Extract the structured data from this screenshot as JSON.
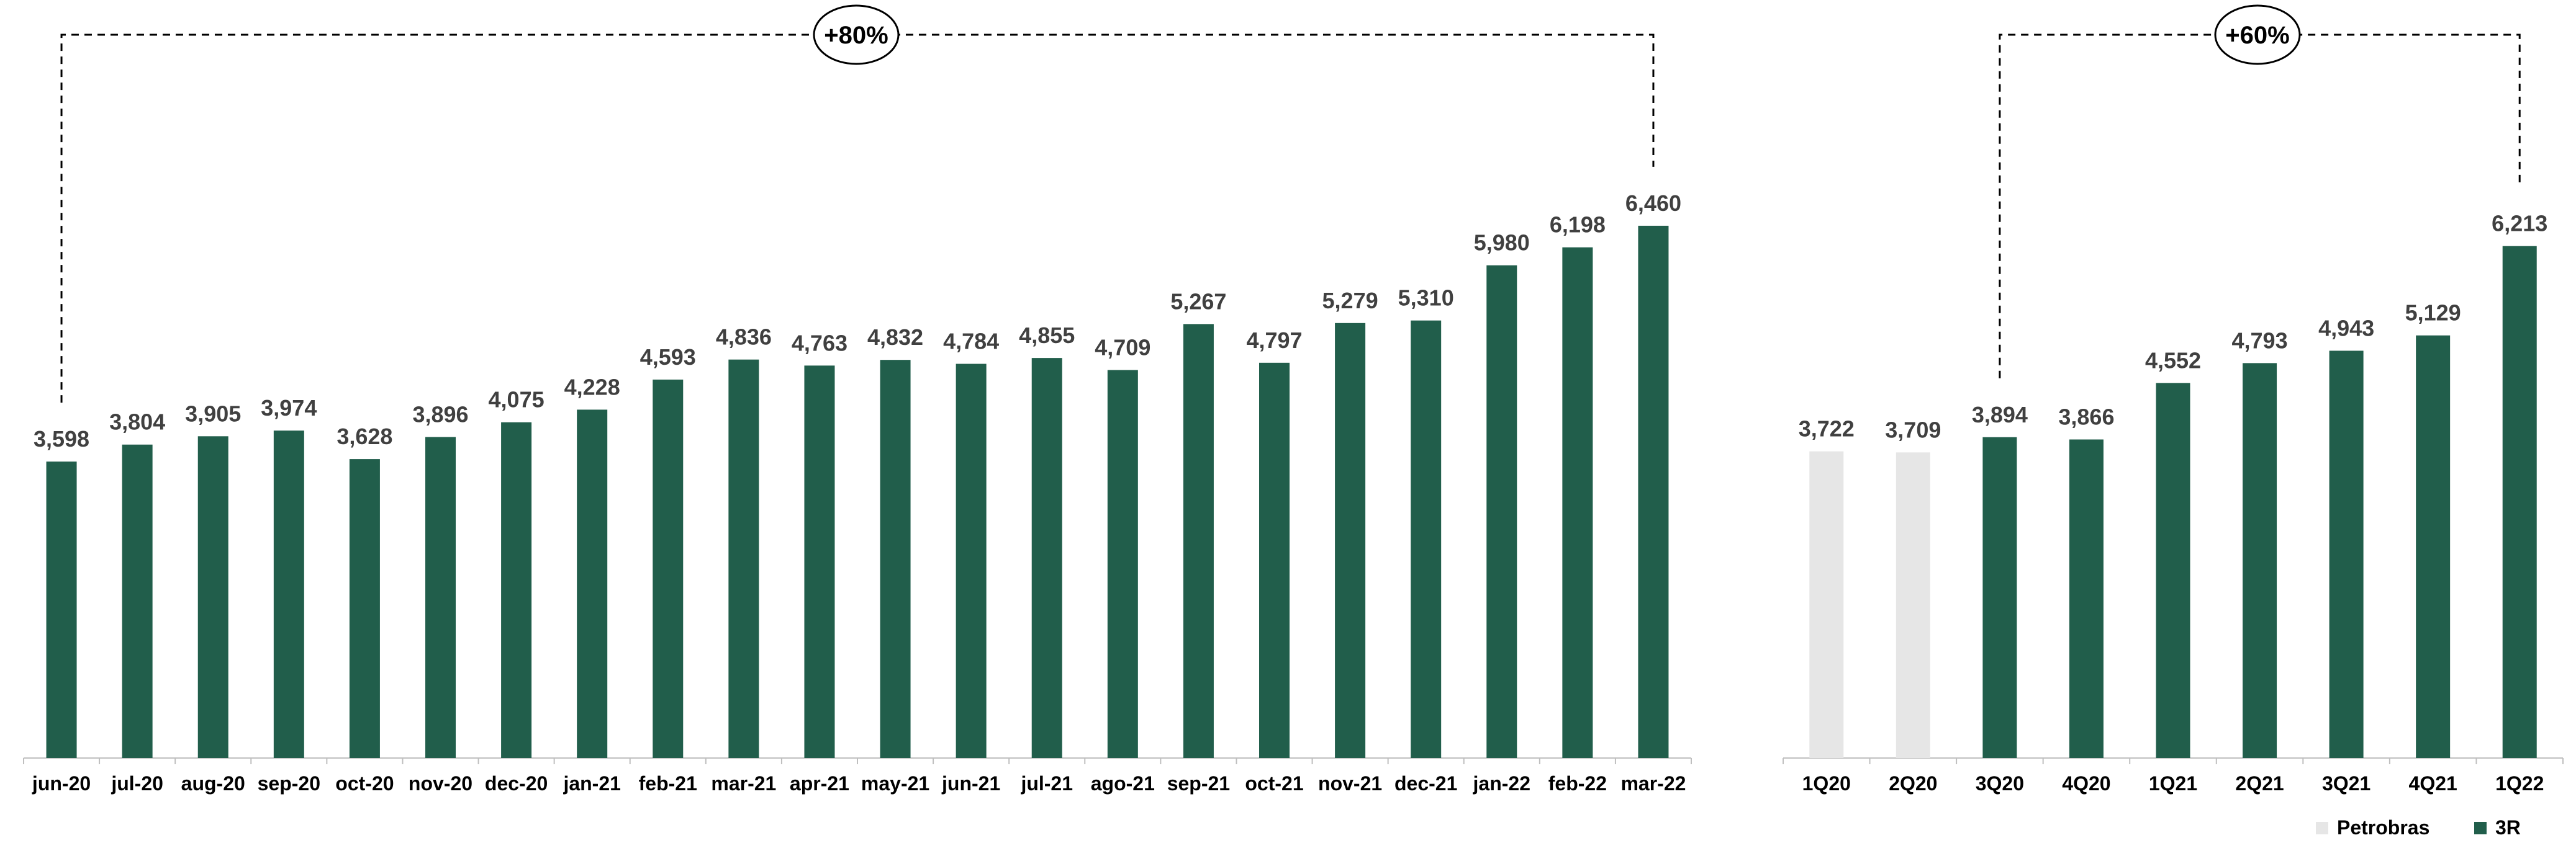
{
  "chart_data": [
    {
      "type": "bar",
      "title": "",
      "xlabel": "",
      "ylabel": "",
      "ylim": [
        0,
        7000
      ],
      "grid": false,
      "categories": [
        "jun-20",
        "jul-20",
        "aug-20",
        "sep-20",
        "oct-20",
        "nov-20",
        "dec-20",
        "jan-21",
        "feb-21",
        "mar-21",
        "apr-21",
        "may-21",
        "jun-21",
        "jul-21",
        "ago-21",
        "sep-21",
        "oct-21",
        "nov-21",
        "dec-21",
        "jan-22",
        "feb-22",
        "mar-22"
      ],
      "values": [
        3598,
        3804,
        3905,
        3974,
        3628,
        3896,
        4075,
        4228,
        4593,
        4836,
        4763,
        4832,
        4784,
        4855,
        4709,
        5267,
        4797,
        5279,
        5310,
        5980,
        6198,
        6460
      ],
      "value_labels": [
        "3,598",
        "3,804",
        "3,905",
        "3,974",
        "3,628",
        "3,896",
        "4,075",
        "4,228",
        "4,593",
        "4,836",
        "4,763",
        "4,832",
        "4,784",
        "4,855",
        "4,709",
        "5,267",
        "4,797",
        "5,279",
        "5,310",
        "5,980",
        "6,198",
        "6,460"
      ],
      "bar_color": "#215e4b",
      "annotation": {
        "label": "+80%",
        "from": "jun-20",
        "to": "mar-22"
      }
    },
    {
      "type": "bar",
      "title": "",
      "xlabel": "",
      "ylabel": "",
      "ylim": [
        0,
        7000
      ],
      "grid": false,
      "categories": [
        "1Q20",
        "2Q20",
        "3Q20",
        "4Q20",
        "1Q21",
        "2Q21",
        "3Q21",
        "4Q21",
        "1Q22"
      ],
      "values": [
        3722,
        3709,
        3894,
        3866,
        4552,
        4793,
        4943,
        5129,
        6213
      ],
      "value_labels": [
        "3,722",
        "3,709",
        "3,894",
        "3,866",
        "4,552",
        "4,793",
        "4,943",
        "5,129",
        "6,213"
      ],
      "owners": [
        "Petrobras",
        "Petrobras",
        "3R",
        "3R",
        "3R",
        "3R",
        "3R",
        "3R",
        "3R"
      ],
      "series_colors": {
        "Petrobras": "#e6e6e6",
        "3R": "#215e4b"
      },
      "annotation": {
        "label": "+60%",
        "from": "3Q20",
        "to": "1Q22"
      },
      "legend": {
        "position": "bottom-right",
        "items": [
          {
            "name": "Petrobras",
            "color": "#e6e6e6"
          },
          {
            "name": "3R",
            "color": "#215e4b"
          }
        ]
      }
    }
  ]
}
